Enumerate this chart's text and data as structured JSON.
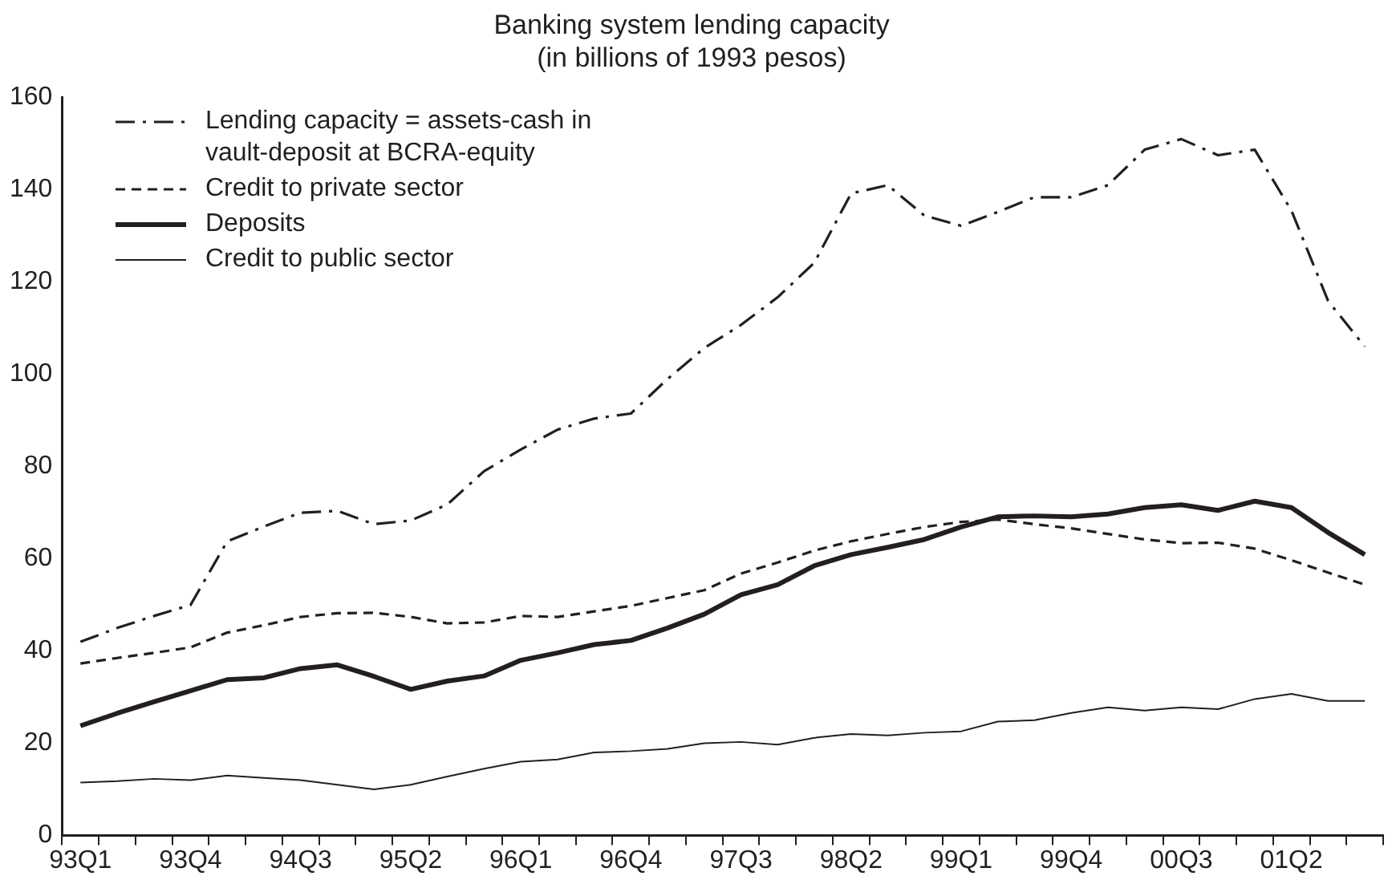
{
  "chart_data": {
    "type": "line",
    "title": "Banking system lending capacity",
    "subtitle": "(in billions of 1993 pesos)",
    "categories": [
      "93Q1",
      null,
      null,
      "93Q4",
      null,
      null,
      "94Q3",
      null,
      null,
      "95Q2",
      null,
      null,
      "96Q1",
      null,
      null,
      "96Q4",
      null,
      null,
      "97Q3",
      null,
      null,
      "98Q2",
      null,
      null,
      "99Q1",
      null,
      null,
      "99Q4",
      null,
      null,
      "00Q3",
      null,
      null,
      "01Q2",
      null,
      null
    ],
    "series": [
      {
        "name": "Lending capacity = assets-cash in vault-deposit at BCRA-equity",
        "color": "#231f20",
        "line_style": "dashdot",
        "values": [
          42,
          45,
          47.6,
          50,
          63.8,
          67,
          70,
          70.4,
          67.5,
          68.3,
          71.8,
          79,
          83.7,
          88,
          90.4,
          91.5,
          99,
          105.7,
          110.7,
          116.7,
          124.2,
          139.2,
          141,
          134.4,
          132.2,
          135.2,
          138.4,
          138.4,
          141,
          148.7,
          151,
          147.5,
          148.7,
          135.5,
          115.9,
          106
        ]
      },
      {
        "name": "Credit to private sector",
        "color": "#231f20",
        "line_style": "dashed",
        "values": [
          37.3,
          38.5,
          39.6,
          40.8,
          44,
          45.6,
          47.4,
          48.2,
          48.3,
          47.4,
          46,
          46.2,
          47.6,
          47.4,
          48.6,
          49.8,
          51.5,
          53.2,
          56.8,
          59.2,
          61.8,
          63.8,
          65.4,
          66.9,
          68,
          68.5,
          67.5,
          66.6,
          65.4,
          64.2,
          63.4,
          63.5,
          62.2,
          59.7,
          57,
          54.4
        ]
      },
      {
        "name": "Deposits",
        "color": "#231f20",
        "line_style": "solid",
        "values": [
          23.8,
          26.5,
          29,
          31.4,
          33.8,
          34.2,
          36.2,
          37,
          34.5,
          31.7,
          33.5,
          34.6,
          38,
          39.6,
          41.4,
          42.3,
          45,
          48,
          52.2,
          54.4,
          58.5,
          60.9,
          62.5,
          64.2,
          66.9,
          69.1,
          69.3,
          69.1,
          69.7,
          71.1,
          71.7,
          70.5,
          72.5,
          71.1,
          65.7,
          60.9
        ]
      },
      {
        "name": "Credit to public sector",
        "color": "#231f20",
        "line_style": "solid",
        "values": [
          11.5,
          11.8,
          12.3,
          12,
          13,
          12.5,
          12,
          11,
          10,
          11,
          12.8,
          14.5,
          16,
          16.5,
          18,
          18.3,
          18.8,
          20,
          20.3,
          19.7,
          21.2,
          22,
          21.7,
          22.3,
          22.6,
          24.7,
          25,
          26.6,
          27.8,
          27.1,
          27.8,
          27.4,
          29.6,
          30.7,
          29.2,
          29.2
        ]
      }
    ],
    "ylim": [
      0,
      160
    ],
    "yticks": [
      0,
      20,
      40,
      60,
      80,
      100,
      120,
      140,
      160
    ],
    "grid": false,
    "legend": "top left",
    "marker": "none"
  }
}
